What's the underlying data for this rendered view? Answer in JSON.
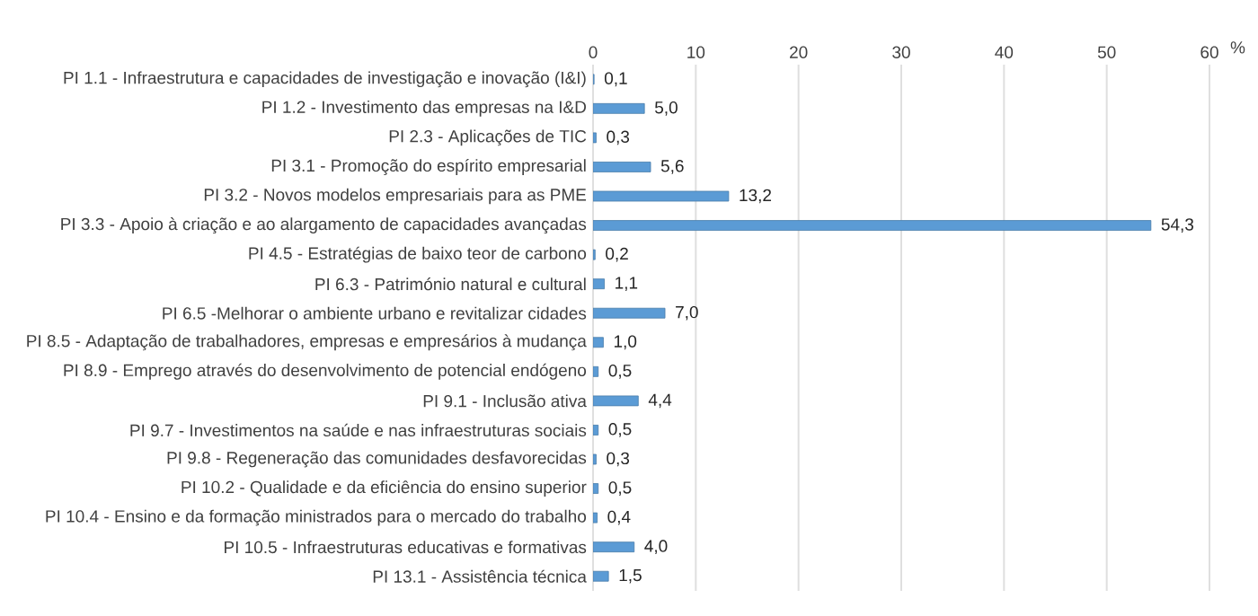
{
  "chart_data": {
    "type": "bar",
    "orientation": "horizontal",
    "xlabel": "%",
    "categories": [
      "PI 1.1 - Infraestrutura e capacidades de investigação e inovação (I&I)",
      "PI 1.2 - Investimento das empresas na I&D",
      "PI 2.3 - Aplicações de TIC",
      "PI 3.1 - Promoção do espírito empresarial",
      "PI 3.2 - Novos modelos empresariais para as PME",
      "PI 3.3 - Apoio à criação e ao alargamento de capacidades avançadas",
      "PI 4.5 - Estratégias de baixo teor de carbono",
      "PI 6.3 - Património natural e cultural",
      "PI 6.5 -Melhorar o ambiente urbano e revitalizar cidades",
      "PI 8.5 - Adaptação de trabalhadores, empresas e empresários à mudança",
      "PI 8.9 -  Emprego através do desenvolvimento de potencial endógeno",
      "PI 9.1 - Inclusão ativa",
      "PI 9.7 - Investimentos na saúde e nas infraestruturas sociais",
      "PI 9.8 - Regeneração das comunidades desfavorecidas",
      "PI 10.2 - Qualidade e da eficiência do ensino superior",
      "PI 10.4 - Ensino e da formação ministrados para o mercado do trabalho",
      "PI 10.5 - Infraestruturas educativas e formativas",
      "PI 13.1 - Assistência técnica"
    ],
    "values": [
      0.1,
      5.0,
      0.3,
      5.6,
      13.2,
      54.3,
      0.2,
      1.1,
      7.0,
      1.0,
      0.5,
      4.4,
      0.5,
      0.3,
      0.5,
      0.4,
      4.0,
      1.5
    ],
    "value_labels": [
      "0,1",
      "5,0",
      "0,3",
      "5,6",
      "13,2",
      "54,3",
      "0,2",
      "1,1",
      "7,0",
      "1,0",
      "0,5",
      "4,4",
      "0,5",
      "0,3",
      "0,5",
      "0,4",
      "4,0",
      "1,5"
    ],
    "color": "#5b9bd5",
    "xlim": [
      0,
      60
    ],
    "xticks": [
      0,
      10,
      20,
      30,
      40,
      50,
      60
    ],
    "grid": "x"
  }
}
